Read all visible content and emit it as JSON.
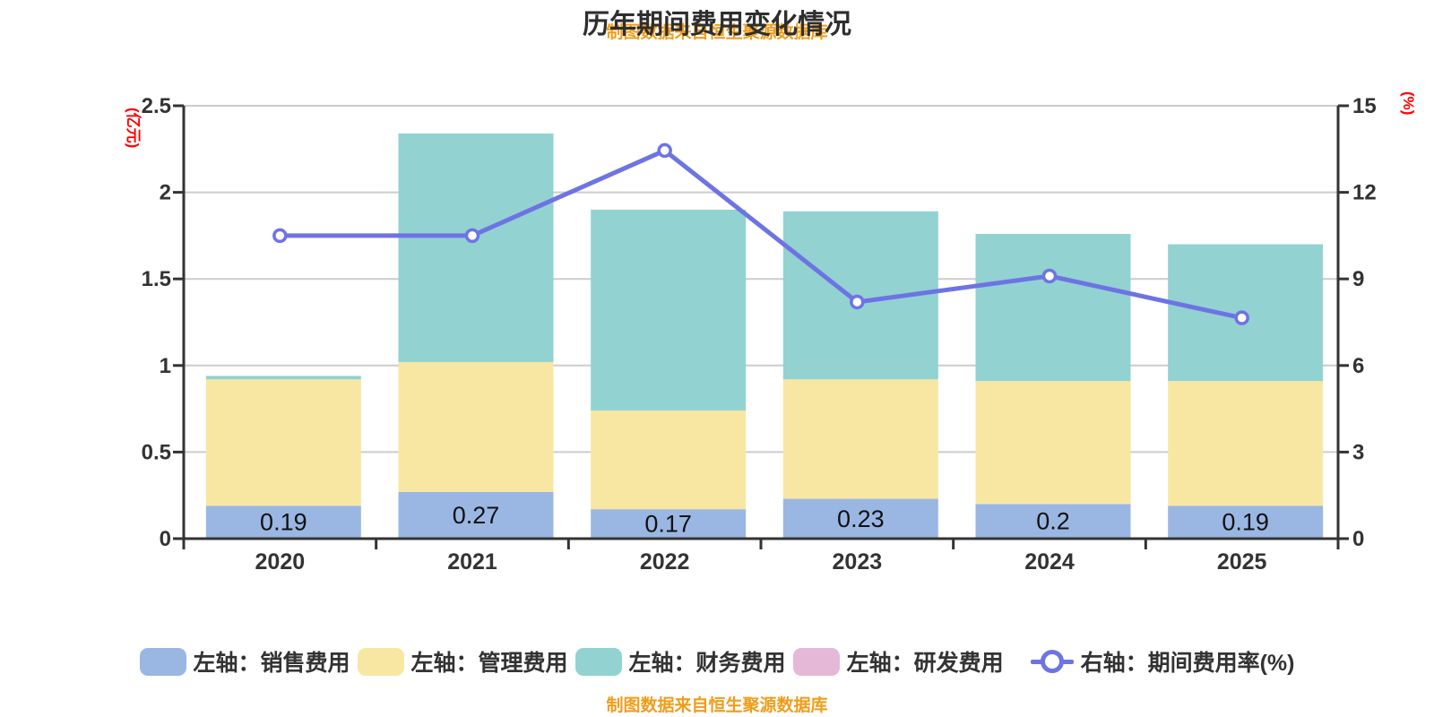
{
  "title": "历年期间费用变化情况",
  "source_note": "制图数据来自恒生聚源数据库",
  "colors": {
    "sales": "#9ab7e3",
    "admin": "#f8e7a2",
    "finance": "#92d2d1",
    "rnd": "#e6b8d8",
    "rate_line": "#6e73e4",
    "grid": "#cccccc",
    "axis": "#333333",
    "text": "#333333",
    "bar_label": "#111111",
    "axis_name_red": "#ff0000",
    "note_orange": "#f09d1a"
  },
  "chart_data": {
    "type": "bar",
    "subtype": "stacked bars with right-axis line",
    "title": "历年期间费用变化情况",
    "categories": [
      "2020",
      "2021",
      "2022",
      "2023",
      "2024",
      "2025"
    ],
    "series": [
      {
        "name": "左轴：销售费用",
        "axis": "left",
        "kind": "bar",
        "color": "#9ab7e3",
        "values": [
          0.19,
          0.27,
          0.17,
          0.23,
          0.2,
          0.19
        ],
        "labeled": true
      },
      {
        "name": "左轴：管理费用",
        "axis": "left",
        "kind": "bar",
        "color": "#f8e7a2",
        "values": [
          0.73,
          0.75,
          0.57,
          0.69,
          0.71,
          0.72
        ]
      },
      {
        "name": "左轴：财务费用",
        "axis": "left",
        "kind": "bar",
        "color": "#92d2d1",
        "values": [
          0.02,
          1.32,
          1.16,
          0.97,
          0.85,
          0.79
        ]
      },
      {
        "name": "左轴：研发费用",
        "axis": "left",
        "kind": "bar",
        "color": "#e6b8d8",
        "values": [
          0,
          0,
          0,
          0,
          0,
          0
        ]
      },
      {
        "name": "右轴：期间费用率(%)",
        "axis": "right",
        "kind": "line",
        "color": "#6e73e4",
        "values": [
          10.5,
          10.5,
          13.45,
          8.2,
          9.1,
          7.65
        ]
      }
    ],
    "y_axis_left": {
      "name": "(亿元)",
      "min": 0,
      "max": 2.5,
      "ticks": [
        "0",
        "0.5",
        "1",
        "1.5",
        "2",
        "2.5"
      ]
    },
    "y_axis_right": {
      "name": "(%)",
      "min": 0,
      "max": 15,
      "ticks": [
        "0",
        "3",
        "6",
        "9",
        "12",
        "15"
      ]
    },
    "x_axis": {
      "labels": [
        "2020",
        "2021",
        "2022",
        "2023",
        "2024",
        "2025"
      ]
    },
    "grid": true,
    "legend_position": "bottom"
  }
}
